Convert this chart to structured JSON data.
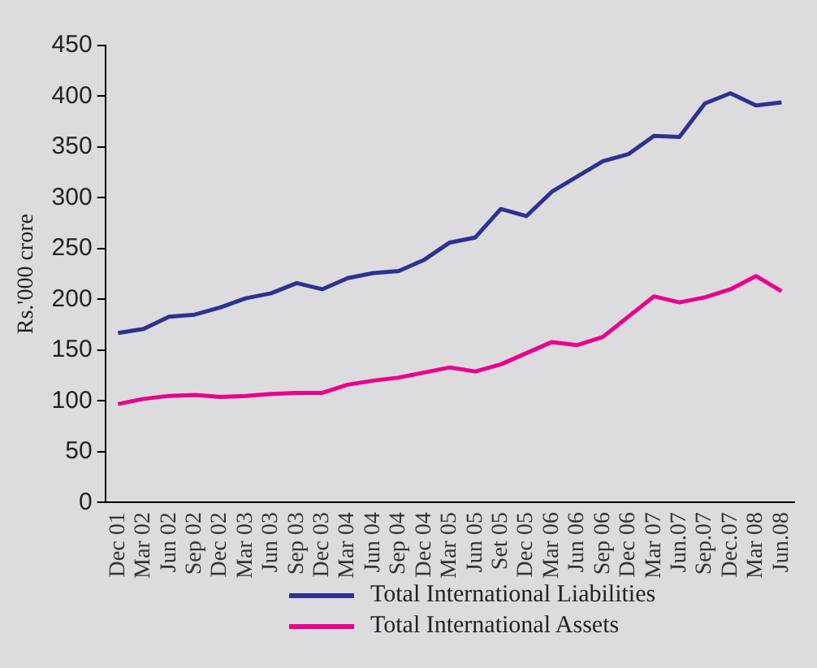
{
  "chart_data": {
    "type": "line",
    "ylabel": "Rs.'000 crore",
    "categories": [
      "Dec 01",
      "Mar 02",
      "Jun 02",
      "Sep 02",
      "Dec 02",
      "Mar 03",
      "Jun 03",
      "Sep 03",
      "Dec 03",
      "Mar 04",
      "Jun 04",
      "Sep 04",
      "Dec 04",
      "Mar 05",
      "Jun 05",
      "Set 05",
      "Dec 05",
      "Mar 06",
      "Jun 06",
      "Sep 06",
      "Dec 06",
      "Mar 07",
      "Jun.07",
      "Sep.07",
      "Dec.07",
      "Mar 08",
      "Jun.08"
    ],
    "series": [
      {
        "name": "Total International Liabilities",
        "color": "#2e3192",
        "values": [
          167,
          171,
          183,
          185,
          192,
          201,
          206,
          216,
          210,
          221,
          226,
          228,
          239,
          256,
          261,
          289,
          282,
          306,
          321,
          336,
          343,
          361,
          360,
          393,
          403,
          391,
          394
        ]
      },
      {
        "name": "Total International Assets",
        "color": "#ec008c",
        "values": [
          97,
          102,
          105,
          106,
          104,
          105,
          107,
          108,
          108,
          116,
          120,
          123,
          128,
          133,
          129,
          136,
          147,
          158,
          155,
          163,
          183,
          203,
          197,
          202,
          210,
          223,
          208
        ]
      }
    ],
    "ylim": [
      0,
      450
    ],
    "yticks": [
      0,
      50,
      100,
      150,
      200,
      250,
      300,
      350,
      400,
      450
    ],
    "grid": false,
    "legend": "bottom",
    "marker": "none",
    "line_style": "solid"
  }
}
